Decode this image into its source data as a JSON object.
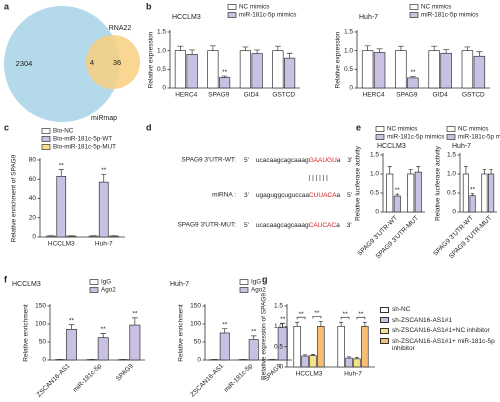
{
  "panel_labels": [
    "a",
    "b",
    "c",
    "d",
    "e",
    "f",
    "g"
  ],
  "chart_data": [
    {
      "type": "venn",
      "sets": [
        {
          "name": "miRmap",
          "color": "#b3d9eb",
          "count": 2304
        },
        {
          "name": "RNA22",
          "color": "#f8cf7f",
          "count": 36
        }
      ],
      "overlap": 4
    },
    {
      "type": "bar",
      "title": "HCCLM3",
      "y_label": "Relative expression",
      "categories": [
        "HERC4",
        "SPAG9",
        "GID4",
        "GSTCD"
      ],
      "series": [
        {
          "name": "NC mimics",
          "color": "#ffffff",
          "values": [
            1,
            1,
            1,
            1
          ],
          "errors": [
            0.12,
            0.13,
            0.1,
            0.12
          ]
        },
        {
          "name": "miR-181c-5p mimics",
          "color": "#c9c0e3",
          "values": [
            0.9,
            0.28,
            0.92,
            0.8
          ],
          "errors": [
            0.12,
            0.04,
            0.1,
            0.13
          ],
          "sig": [
            null,
            "**",
            null,
            null
          ]
        }
      ],
      "ylim": [
        0,
        1.5
      ],
      "yticks": [
        0,
        0.5,
        {
          "value": 1,
          "label": "1.0"
        },
        1.5
      ]
    },
    {
      "type": "bar",
      "title": "Huh-7",
      "y_label": "Relative expression",
      "categories": [
        "HERC4",
        "SPAG9",
        "GID4",
        "GSTCD"
      ],
      "series": [
        {
          "name": "NC mimics",
          "color": "#ffffff",
          "values": [
            1,
            1,
            1,
            1
          ],
          "errors": [
            0.13,
            0.12,
            0.12,
            0.1
          ]
        },
        {
          "name": "miR-181c-5p mimics",
          "color": "#c9c0e3",
          "values": [
            0.95,
            0.27,
            0.93,
            0.85
          ],
          "errors": [
            0.1,
            0.04,
            0.1,
            0.12
          ],
          "sig": [
            null,
            "**",
            null,
            null
          ]
        }
      ],
      "ylim": [
        0,
        1.5
      ],
      "yticks": [
        0,
        0.5,
        {
          "value": 1,
          "label": "1.0"
        },
        1.5
      ]
    },
    {
      "type": "bar",
      "y_label": "Relative enrichment of SPAG9",
      "categories": [
        "HCCLM3",
        "Huh-7"
      ],
      "series": [
        {
          "name": "Bio-NC",
          "color": "#ffffff",
          "values": [
            1,
            1
          ],
          "errors": [
            0.3,
            0.3
          ]
        },
        {
          "name": "Bio-miR-181c-5p-WT",
          "color": "#c9c0e3",
          "values": [
            63,
            57
          ],
          "errors": [
            7,
            8
          ],
          "sig": [
            "**",
            "**"
          ]
        },
        {
          "name": "Bio-miR-181c-5p-MUT",
          "color": "#f6e28b",
          "values": [
            1,
            1
          ],
          "errors": [
            0.3,
            0.3
          ]
        }
      ],
      "ylim": [
        0,
        80
      ],
      "yticks": [
        0,
        20,
        40,
        60,
        80
      ]
    },
    {
      "type": "bar",
      "title": "HCCLM3",
      "y_label": "Relative luciferase activity",
      "categories": [
        "SPAG9 3'UTR-WT",
        "SPAG9 3'UTR-MUT"
      ],
      "series": [
        {
          "name": "NC mimics",
          "color": "#ffffff",
          "values": [
            1,
            1
          ],
          "errors": [
            0.2,
            0.12
          ]
        },
        {
          "name": "miR-181c-5p mimics",
          "color": "#c9c0e3",
          "values": [
            0.42,
            1.05
          ],
          "errors": [
            0.05,
            0.15
          ],
          "sig": [
            "**",
            null
          ]
        }
      ],
      "ylim": [
        0,
        1.5
      ],
      "yticks": [
        0,
        0.5,
        {
          "value": 1,
          "label": "1.0"
        },
        1.5
      ]
    },
    {
      "type": "bar",
      "title": "Huh-7",
      "y_label": "Relative luciferase activity",
      "categories": [
        "SPAG9 3'UTR-WT",
        "SPAG9 3'UTR-MUT"
      ],
      "series": [
        {
          "name": "NC mimics",
          "color": "#ffffff",
          "values": [
            1,
            1
          ],
          "errors": [
            0.2,
            0.12
          ]
        },
        {
          "name": "miR-181c-5p mimics",
          "color": "#c9c0e3",
          "values": [
            0.43,
            1
          ],
          "errors": [
            0.05,
            0.12
          ],
          "sig": [
            "**",
            null
          ]
        }
      ],
      "ylim": [
        0,
        1.5
      ],
      "yticks": [
        0,
        0.5,
        {
          "value": 1,
          "label": "1.0"
        },
        1.5
      ]
    },
    {
      "type": "bar",
      "title": "HCCLM3",
      "y_label": "Relative enrichment",
      "categories": [
        "ZSCAN16-AS1",
        "miR-181c-5p",
        "SPAG9"
      ],
      "series": [
        {
          "name": "IgG",
          "color": "#ffffff",
          "values": [
            1,
            1,
            1
          ],
          "errors": [
            0.5,
            0.5,
            0.5
          ]
        },
        {
          "name": "Ago2",
          "color": "#c9c0e3",
          "values": [
            85,
            62,
            97
          ],
          "errors": [
            13,
            12,
            20
          ],
          "sig": [
            "**",
            "**",
            "**"
          ]
        }
      ],
      "ylim": [
        0,
        150
      ],
      "yticks": [
        0,
        50,
        100,
        150
      ]
    },
    {
      "type": "bar",
      "title": "Huh-7",
      "y_label": "Relative enrichment",
      "categories": [
        "ZSCAN16-AS1",
        "miR-181c-5p",
        "SPAG9"
      ],
      "series": [
        {
          "name": "IgG",
          "color": "#ffffff",
          "values": [
            1,
            1,
            1
          ],
          "errors": [
            0.5,
            0.5,
            0.5
          ]
        },
        {
          "name": "Ago2",
          "color": "#c9c0e3",
          "values": [
            75,
            57,
            90
          ],
          "errors": [
            12,
            10,
            12
          ],
          "sig": [
            "**",
            "**",
            "**"
          ]
        }
      ],
      "ylim": [
        0,
        150
      ],
      "yticks": [
        0,
        50,
        100,
        150
      ]
    },
    {
      "type": "bar",
      "y_label": "Relative expression of SPAG9",
      "categories": [
        "HCCLM3",
        "Huh-7"
      ],
      "series": [
        {
          "name": "sh-NC",
          "color": "#ffffff",
          "values": [
            1,
            1
          ],
          "errors": [
            0.1,
            0.1
          ]
        },
        {
          "name": "sh-ZSCAN16-AS1#1",
          "color": "#c9c0e3",
          "values": [
            0.27,
            0.22
          ],
          "errors": [
            0.03,
            0.03
          ],
          "sig": [
            "**",
            "**"
          ]
        },
        {
          "name": "sh-ZSCAN16-AS1#1+NC inhibitor",
          "color": "#f6e28b",
          "values": [
            0.28,
            0.2
          ],
          "errors": [
            0.03,
            0.03
          ]
        },
        {
          "name": "sh-ZSCAN16-AS1#1+ miR-181c-5p inhibitor",
          "color": "#f7bd74",
          "values": [
            1,
            1
          ],
          "errors": [
            0.12,
            0.1
          ],
          "sig": [
            "**",
            "**"
          ]
        }
      ],
      "ylim": [
        0,
        1.5
      ],
      "yticks": [
        0,
        0.5,
        {
          "value": 1,
          "label": "1.0"
        },
        1.5
      ]
    }
  ],
  "sequence_panel": {
    "rows": [
      {
        "name": "SPAG9 3'UTR-WT:",
        "left": "5'",
        "seq": "ucacaagcagcaaag",
        "highlight": "GAAUGU",
        "tail": "a",
        "right": "3'"
      },
      {
        "name": "miRNA :",
        "left": "3'",
        "seq": "ugaguggcuguccaa",
        "highlight": "CUUACA",
        "tail": "a",
        "right": "5'"
      },
      {
        "name": "SPAG9 3'UTR-MUT:",
        "left": "5'",
        "seq": "ucacaagcagcaaag",
        "highlight": "CAUCAC",
        "tail": "a",
        "right": "3'"
      }
    ],
    "pairing": "||||||"
  }
}
